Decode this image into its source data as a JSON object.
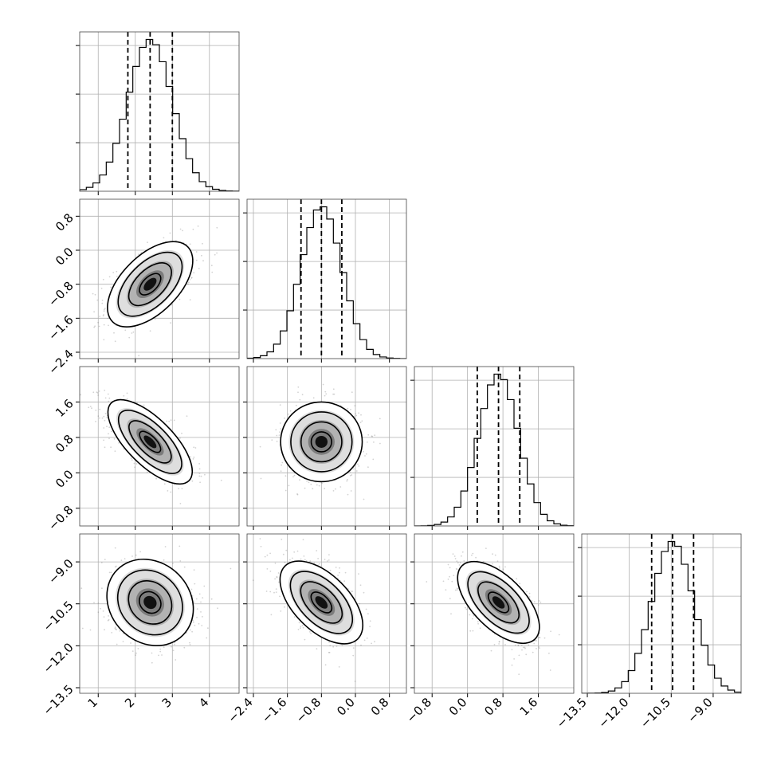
{
  "chart_data": {
    "type": "corner",
    "title": "",
    "parameters": [
      {
        "range": [
          0.5,
          4.8
        ],
        "ticks": [
          1,
          2,
          3,
          4
        ],
        "tick_labels": [
          "1",
          "2",
          "3",
          "4"
        ],
        "mean": 2.4,
        "std": 0.6,
        "quantiles": [
          1.8,
          2.4,
          3.0
        ]
      },
      {
        "range": [
          -2.55,
          1.2
        ],
        "ticks": [
          -2.4,
          -1.6,
          -0.8,
          0.0,
          0.8
        ],
        "tick_labels": [
          "−2.4",
          "−1.6",
          "−0.8",
          "0.0",
          "0.8"
        ],
        "mean": -0.8,
        "std": 0.48,
        "quantiles": [
          -1.28,
          -0.8,
          -0.32
        ]
      },
      {
        "range": [
          -1.2,
          2.4
        ],
        "ticks": [
          -0.8,
          0.0,
          0.8,
          1.6
        ],
        "tick_labels": [
          "−0.8",
          "0.0",
          "0.8",
          "1.6"
        ],
        "mean": 0.7,
        "std": 0.45,
        "quantiles": [
          0.22,
          0.7,
          1.18
        ]
      },
      {
        "range": [
          -13.7,
          -8.0
        ],
        "ticks": [
          -13.5,
          -12.0,
          -10.5,
          -9.0
        ],
        "tick_labels": [
          "−13.5",
          "−12.0",
          "−10.5",
          "−9.0"
        ],
        "mean": -10.45,
        "std": 0.75,
        "quantiles": [
          -11.2,
          -10.45,
          -9.7
        ]
      }
    ],
    "correlations": {
      "1-0": 0.55,
      "2-0": -0.7,
      "2-1": 0.0,
      "3-0": -0.15,
      "3-1": -0.55,
      "3-2": -0.6
    },
    "scatter_color": "#808080",
    "line_color": "#000000"
  }
}
